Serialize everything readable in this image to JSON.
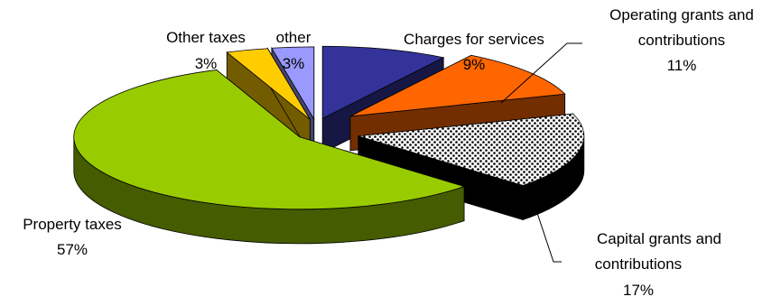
{
  "chart_data": {
    "type": "pie",
    "title": "",
    "slices": [
      {
        "label": "Charges for services",
        "value": 9,
        "value_label": "9%",
        "color": "#333399"
      },
      {
        "label": "Operating grants and contributions",
        "label_lines": [
          "Operating grants and",
          "contributions"
        ],
        "value": 11,
        "value_label": "11%",
        "color": "#ff6600"
      },
      {
        "label": "Capital grants and contributions",
        "label_lines": [
          "Capital grants and",
          "contributions"
        ],
        "value": 17,
        "value_label": "17%",
        "color": "#000000"
      },
      {
        "label": "Property taxes",
        "value": 57,
        "value_label": "57%",
        "color": "#99cc00"
      },
      {
        "label": "Other taxes",
        "value": 3,
        "value_label": "3%",
        "color": "#ffcc00"
      },
      {
        "label": "other",
        "value": 3,
        "value_label": "3%",
        "color": "#9999ff"
      }
    ]
  }
}
